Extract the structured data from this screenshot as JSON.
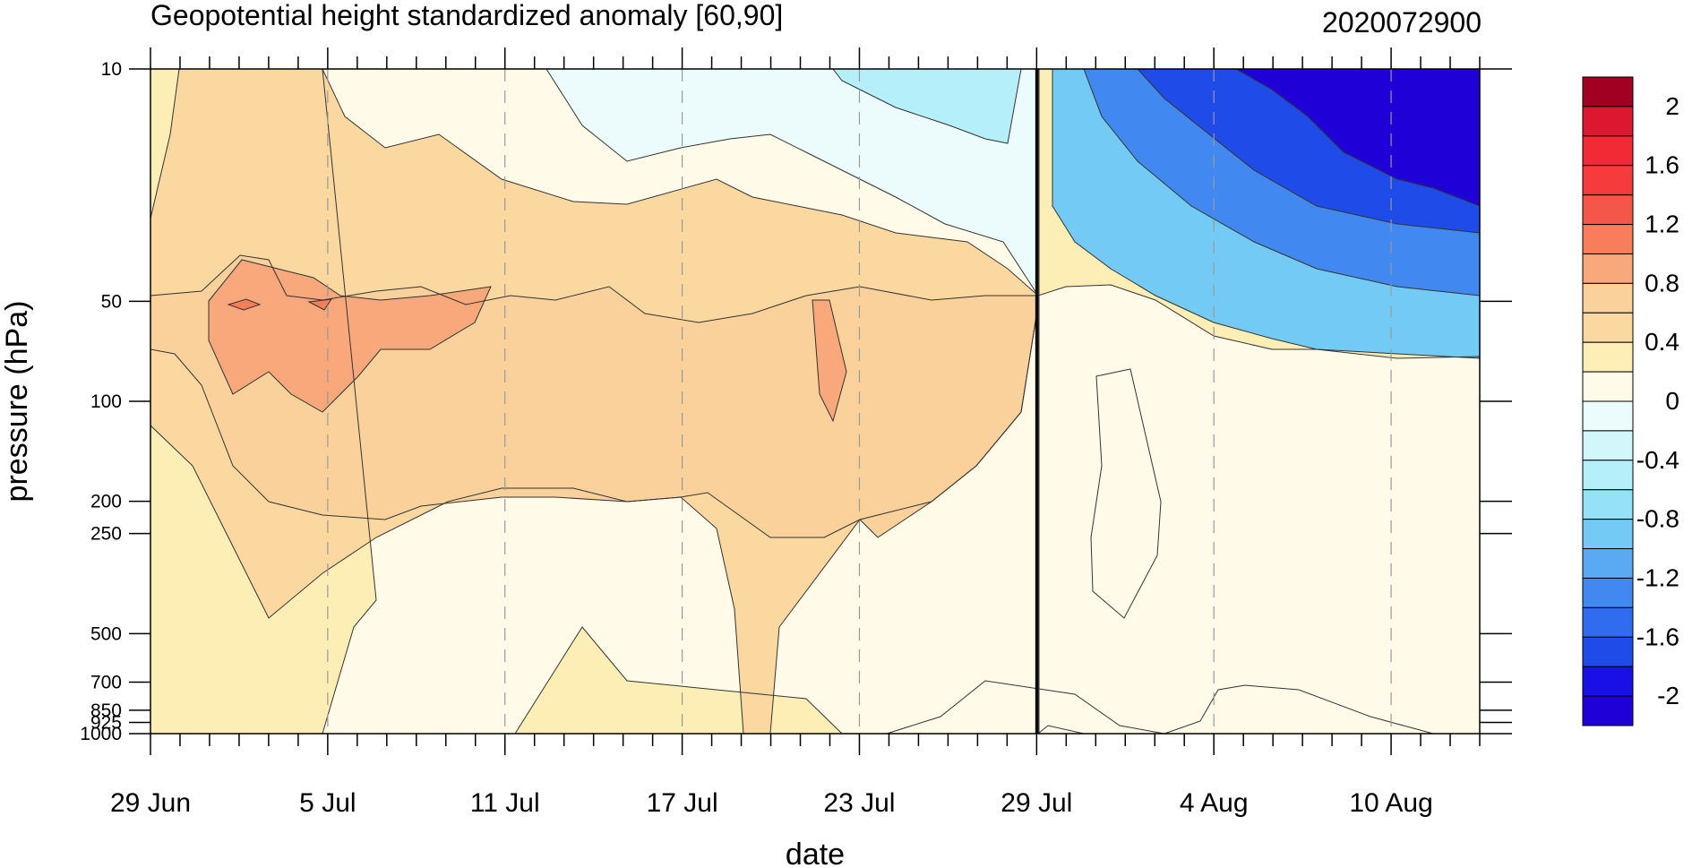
{
  "chart_data": {
    "type": "heatmap",
    "title": "Geopotential height standardized anomaly [60,90]",
    "date_label": "2020072900",
    "xlabel": "date",
    "ylabel": "pressure (hPa)",
    "x_ticks": [
      "29 Jun",
      "5 Jul",
      "11 Jul",
      "17 Jul",
      "23 Jul",
      "29 Jul",
      "4 Aug",
      "10 Aug"
    ],
    "x_range_days": [
      0,
      45
    ],
    "y_ticks": [
      "10",
      "50",
      "100",
      "200",
      "250",
      "500",
      "700",
      "850",
      "925",
      "1000"
    ],
    "y_range_hpa": [
      1000,
      10
    ],
    "y_scale": "log",
    "current_date_line": "29 Jul",
    "grid": "dashed vertical at labeled dates",
    "colorbar": {
      "labels": [
        "2",
        "1.6",
        "1.2",
        "0.8",
        "0.4",
        "0",
        "-0.4",
        "-0.8",
        "-1.2",
        "-1.6",
        "-2"
      ],
      "levels": [
        -2.2,
        -2.0,
        -1.8,
        -1.6,
        -1.4,
        -1.2,
        -1.0,
        -0.8,
        -0.6,
        -0.4,
        -0.2,
        0.0,
        0.2,
        0.4,
        0.6,
        0.8,
        1.0,
        1.2,
        1.4,
        1.6,
        1.8,
        2.0,
        2.2
      ],
      "colors": [
        "#1f00d6",
        "#1910e8",
        "#1f4be8",
        "#2f6cef",
        "#4189f0",
        "#5aa9f3",
        "#73cbf5",
        "#95e1f7",
        "#b4effa",
        "#d2f7fb",
        "#ecfcfd",
        "#fffbe8",
        "#fdeeb6",
        "#fbd8a0",
        "#fbd19b",
        "#f8a87a",
        "#f87d5a",
        "#f5564a",
        "#f53b3b",
        "#f22a35",
        "#dd1730",
        "#a10022"
      ]
    },
    "regions": [
      {
        "value": 0.3,
        "desc": "background"
      },
      {
        "value": 0.1,
        "desc": "upper mid June/July band"
      },
      {
        "value": 0.5,
        "desc": "stratosphere positive band"
      },
      {
        "value": 0.7,
        "desc": "strong positive cores"
      },
      {
        "value": 0.9,
        "desc": "positive maxima 50 hPa"
      },
      {
        "value": 1.1,
        "desc": "small peaks 50 hPa"
      },
      {
        "value": -0.1,
        "desc": "near-zero upper region"
      },
      {
        "value": -2.1,
        "desc": "strong negative anomaly August top"
      },
      {
        "value": 0.1,
        "desc": "lower troposphere near zero"
      }
    ]
  }
}
